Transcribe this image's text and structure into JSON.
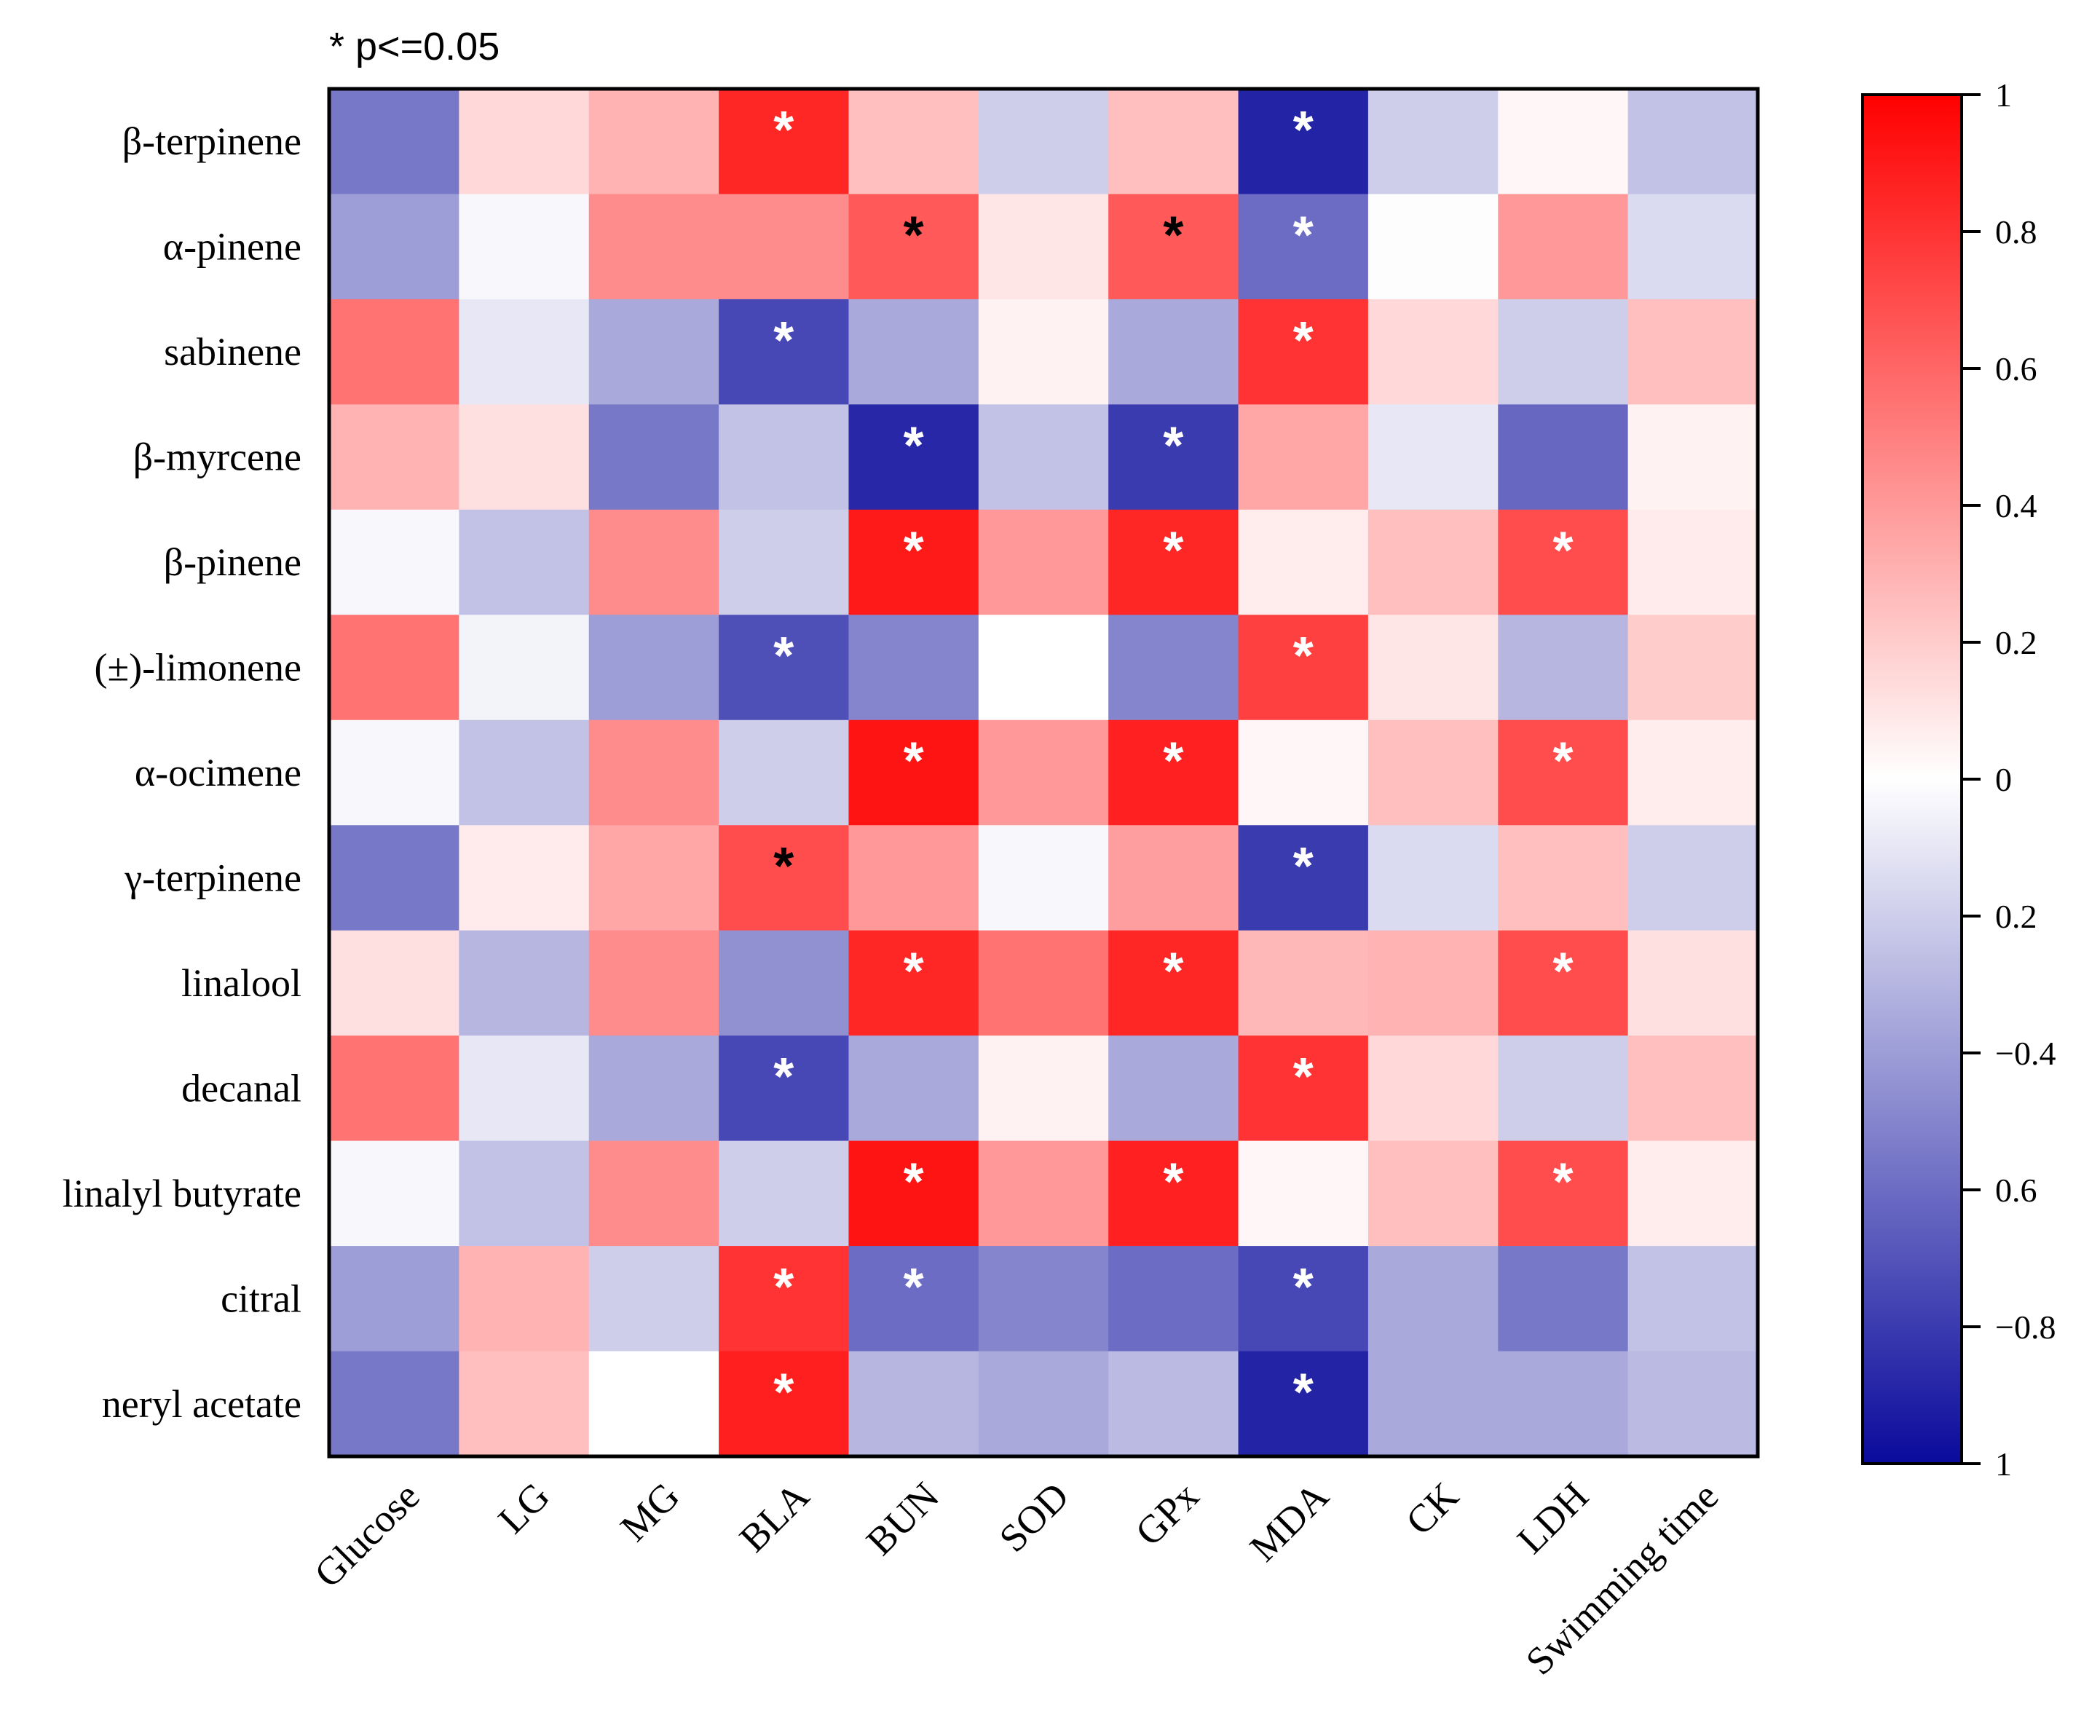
{
  "chart_data": {
    "type": "heatmap",
    "note": "* p<=0.05",
    "rows": [
      "β-terpinene",
      "α-pinene",
      "sabinene",
      "β-myrcene",
      "β-pinene",
      "(±)-limonene",
      "α-ocimene",
      "γ-terpinene",
      "linalool",
      "decanal",
      "linalyl butyrate",
      "citral",
      "neryl acetate"
    ],
    "columns": [
      "Glucose",
      "LG",
      "MG",
      "BLA",
      "BUN",
      "SOD",
      "GPx",
      "MDA",
      "CK",
      "LDH",
      "Swimming time"
    ],
    "values": [
      [
        -0.55,
        0.15,
        0.3,
        0.85,
        0.25,
        -0.2,
        0.25,
        -0.9,
        -0.2,
        0.03,
        -0.25
      ],
      [
        -0.4,
        -0.03,
        0.45,
        0.45,
        0.65,
        0.1,
        0.65,
        -0.6,
        -0.01,
        0.4,
        -0.15
      ],
      [
        0.55,
        -0.1,
        -0.35,
        -0.75,
        -0.35,
        0.05,
        -0.35,
        0.8,
        0.15,
        -0.2,
        0.25
      ],
      [
        0.3,
        0.12,
        -0.55,
        -0.25,
        -0.88,
        -0.25,
        -0.8,
        0.35,
        -0.1,
        -0.62,
        0.05
      ],
      [
        -0.03,
        -0.25,
        0.45,
        -0.2,
        0.9,
        0.4,
        0.85,
        0.07,
        0.25,
        0.7,
        0.08
      ],
      [
        0.55,
        -0.05,
        -0.4,
        -0.72,
        -0.5,
        0.0,
        -0.5,
        0.75,
        0.1,
        -0.3,
        0.2
      ],
      [
        -0.03,
        -0.25,
        0.45,
        -0.2,
        0.92,
        0.4,
        0.87,
        0.03,
        0.25,
        0.7,
        0.07
      ],
      [
        -0.55,
        0.08,
        0.35,
        0.7,
        0.4,
        -0.03,
        0.38,
        -0.8,
        -0.15,
        0.25,
        -0.2
      ],
      [
        0.12,
        -0.3,
        0.45,
        -0.45,
        0.85,
        0.55,
        0.85,
        0.28,
        0.3,
        0.7,
        0.12
      ],
      [
        0.55,
        -0.1,
        -0.35,
        -0.75,
        -0.35,
        0.05,
        -0.35,
        0.8,
        0.15,
        -0.2,
        0.25
      ],
      [
        -0.03,
        -0.25,
        0.45,
        -0.2,
        0.92,
        0.4,
        0.87,
        0.03,
        0.25,
        0.7,
        0.07
      ],
      [
        -0.4,
        0.3,
        -0.2,
        0.8,
        -0.6,
        -0.5,
        -0.6,
        -0.75,
        -0.35,
        -0.55,
        -0.25
      ],
      [
        -0.55,
        0.25,
        0.0,
        0.88,
        -0.3,
        -0.35,
        -0.28,
        -0.9,
        -0.35,
        -0.35,
        -0.28
      ]
    ],
    "significance": [
      [
        "",
        "",
        "",
        "white",
        "",
        "",
        "",
        "white",
        "",
        "",
        ""
      ],
      [
        "",
        "",
        "",
        "",
        "black",
        "",
        "black",
        "white",
        "",
        "",
        ""
      ],
      [
        "",
        "",
        "",
        "white",
        "",
        "",
        "",
        "white",
        "",
        "",
        ""
      ],
      [
        "",
        "",
        "",
        "",
        "white",
        "",
        "white",
        "",
        "",
        "",
        ""
      ],
      [
        "",
        "",
        "",
        "",
        "white",
        "",
        "white",
        "",
        "",
        "white",
        ""
      ],
      [
        "",
        "",
        "",
        "white",
        "",
        "",
        "",
        "white",
        "",
        "",
        ""
      ],
      [
        "",
        "",
        "",
        "",
        "white",
        "",
        "white",
        "",
        "",
        "white",
        ""
      ],
      [
        "",
        "",
        "",
        "black",
        "",
        "",
        "",
        "white",
        "",
        "",
        ""
      ],
      [
        "",
        "",
        "",
        "",
        "white",
        "",
        "white",
        "",
        "",
        "white",
        ""
      ],
      [
        "",
        "",
        "",
        "white",
        "",
        "",
        "",
        "white",
        "",
        "",
        ""
      ],
      [
        "",
        "",
        "",
        "",
        "white",
        "",
        "white",
        "",
        "",
        "white",
        ""
      ],
      [
        "",
        "",
        "",
        "white",
        "white",
        "",
        "",
        "white",
        "",
        "",
        ""
      ],
      [
        "",
        "",
        "",
        "white",
        "",
        "",
        "",
        "white",
        "",
        "",
        ""
      ]
    ],
    "colorbar": {
      "range": [
        -1,
        1
      ],
      "ticks": [
        "1",
        "0.8",
        "0.6",
        "0.4",
        "0.2",
        "0",
        "0.2",
        "−0.4",
        "0.6",
        "−0.8",
        "1"
      ],
      "colors": {
        "negative": "#0a0a9c",
        "neutral": "#ffffff",
        "positive": "#ff0000"
      }
    }
  }
}
